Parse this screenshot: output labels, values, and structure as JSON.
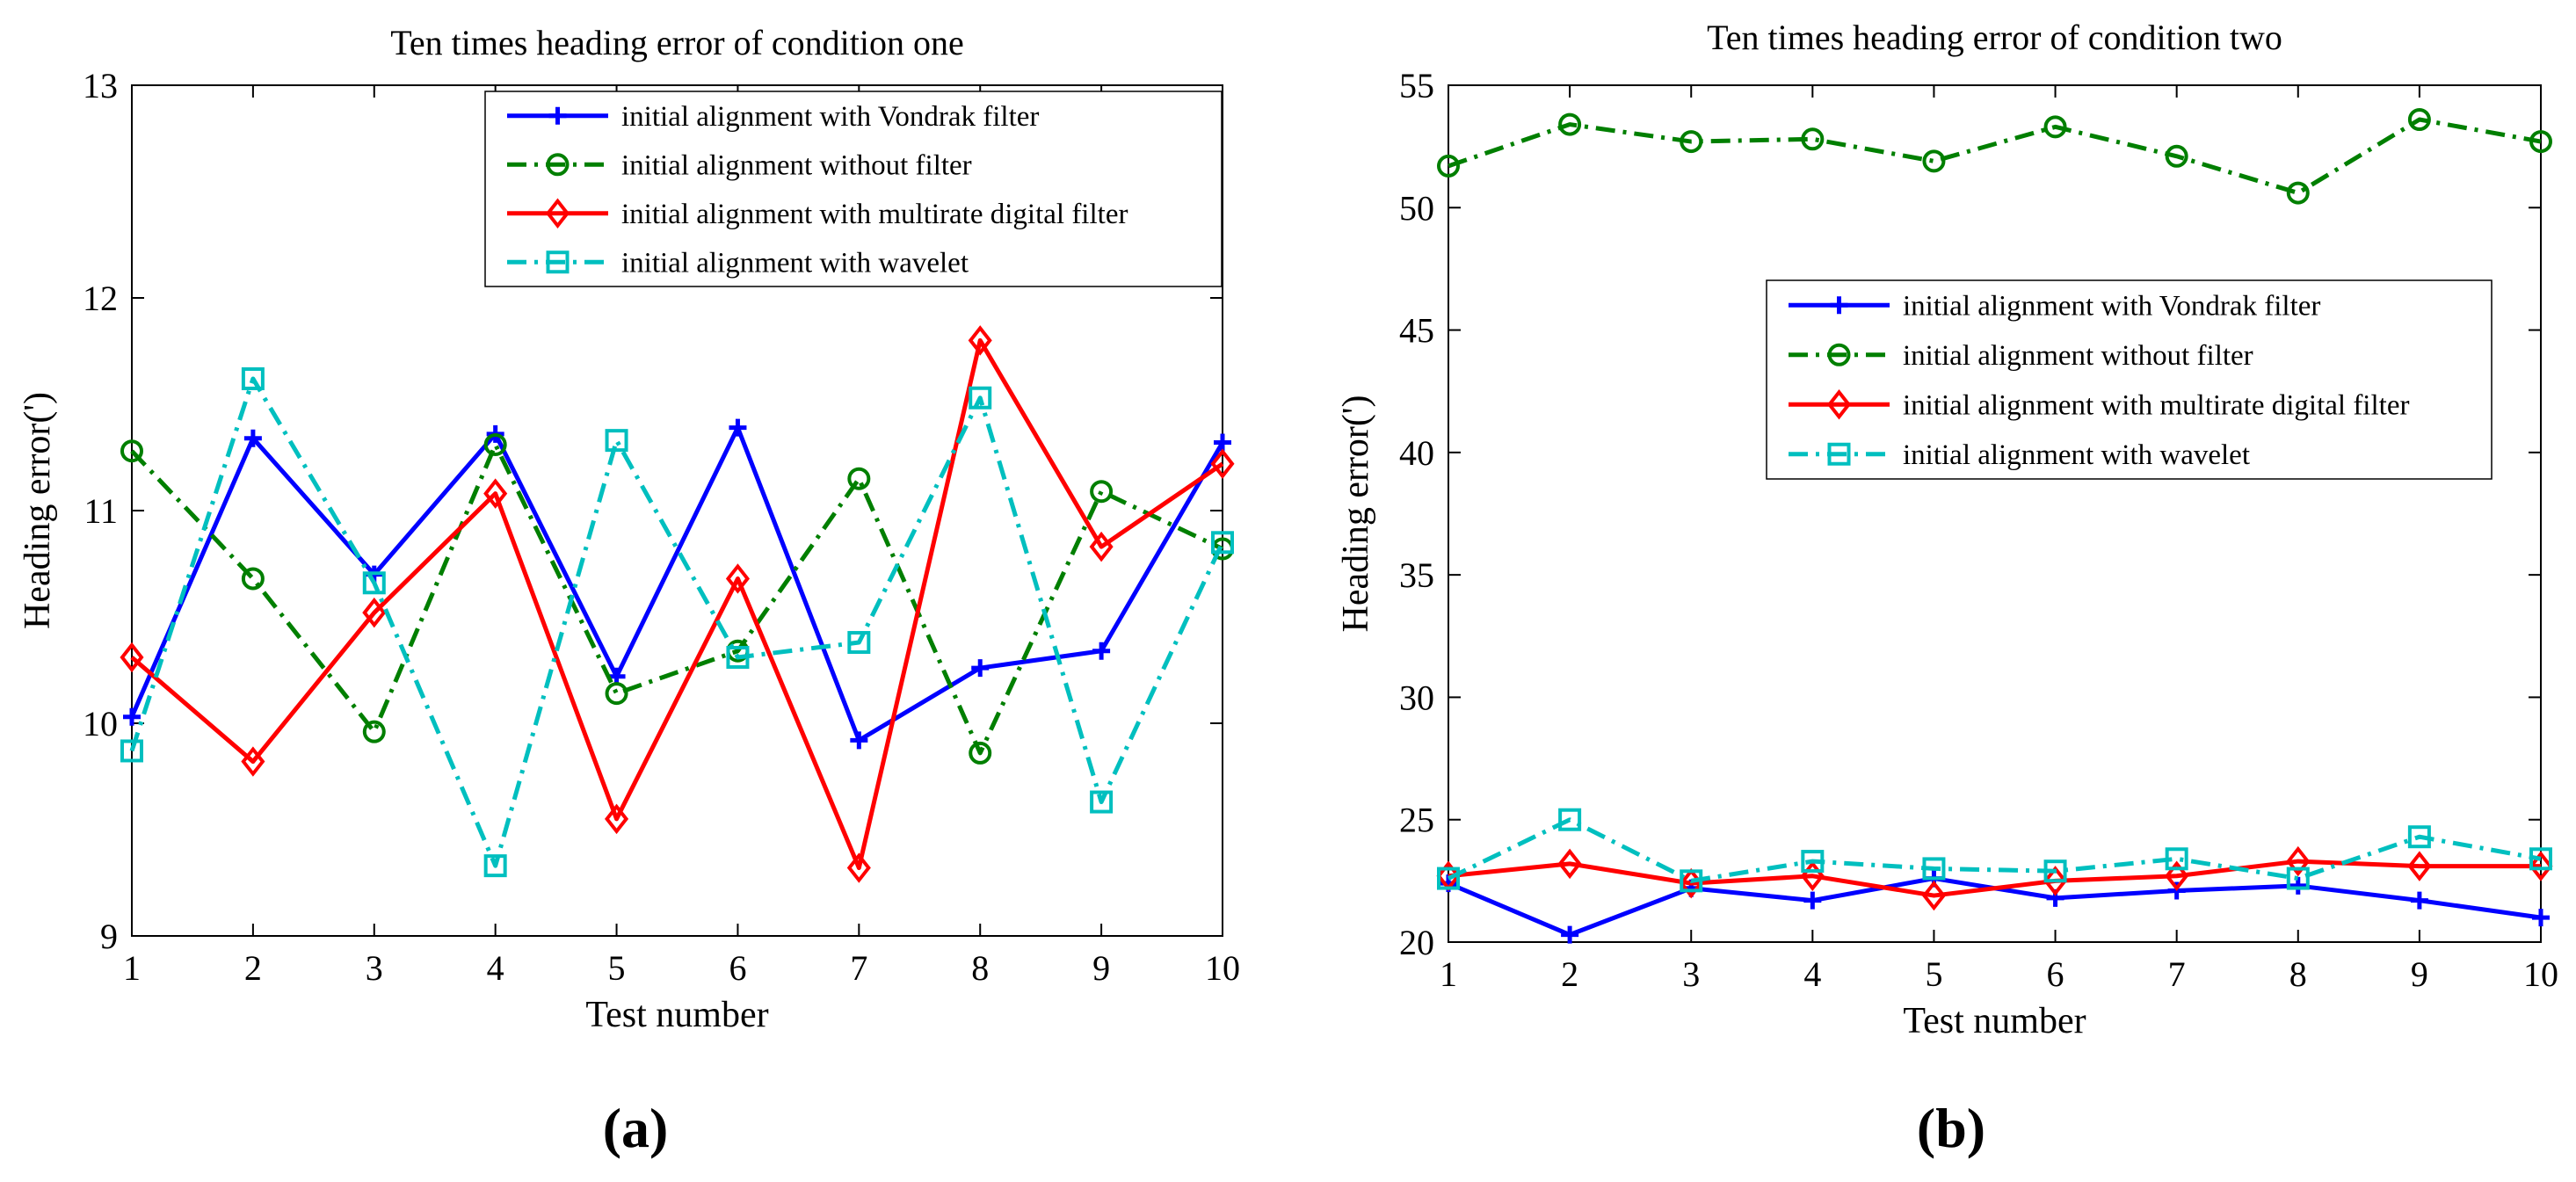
{
  "figure": {
    "panel_labels": [
      "(a)",
      "(b)"
    ]
  },
  "chart_data": [
    {
      "type": "line",
      "title": "Ten times heading error of condition one",
      "xlabel": "Test number",
      "ylabel": "Heading error(')",
      "xlim": [
        1,
        10
      ],
      "ylim": [
        9,
        13
      ],
      "xticks": [
        "1",
        "2",
        "3",
        "4",
        "5",
        "6",
        "7",
        "8",
        "9",
        "10"
      ],
      "yticks": [
        "9",
        "10",
        "11",
        "12",
        "13"
      ],
      "legend_position": "top-right",
      "x": [
        1,
        2,
        3,
        4,
        5,
        6,
        7,
        8,
        9,
        10
      ],
      "series": [
        {
          "name": "initial alignment with Vondrak filter",
          "color": "#0000ff",
          "dash": "solid",
          "marker": "plus",
          "values": [
            10.03,
            11.34,
            10.7,
            11.36,
            10.22,
            11.39,
            9.92,
            10.26,
            10.34,
            11.32
          ]
        },
        {
          "name": "initial alignment without filter",
          "color": "#007f00",
          "dash": "dashdot",
          "marker": "circle",
          "values": [
            11.28,
            10.68,
            9.96,
            11.31,
            10.14,
            10.34,
            11.15,
            9.86,
            11.09,
            10.82
          ]
        },
        {
          "name": "initial alignment with multirate digital filter",
          "color": "#ff0000",
          "dash": "solid",
          "marker": "diamond",
          "values": [
            10.31,
            9.82,
            10.52,
            11.08,
            9.55,
            10.68,
            9.32,
            11.8,
            10.83,
            11.22
          ]
        },
        {
          "name": "initial alignment with wavelet",
          "color": "#00bfbf",
          "dash": "dashdot",
          "marker": "square",
          "values": [
            9.87,
            11.62,
            10.66,
            9.33,
            11.33,
            10.31,
            10.38,
            11.53,
            9.63,
            10.85
          ]
        }
      ]
    },
    {
      "type": "line",
      "title": "Ten times heading error of condition two",
      "xlabel": "Test number",
      "ylabel": "Heading error(')",
      "xlim": [
        1,
        10
      ],
      "ylim": [
        20,
        55
      ],
      "xticks": [
        "1",
        "2",
        "3",
        "4",
        "5",
        "6",
        "7",
        "8",
        "9",
        "10"
      ],
      "yticks": [
        "20",
        "25",
        "30",
        "35",
        "40",
        "45",
        "50",
        "55"
      ],
      "legend_position": "center-right",
      "x": [
        1,
        2,
        3,
        4,
        5,
        6,
        7,
        8,
        9,
        10
      ],
      "series": [
        {
          "name": "initial alignment with Vondrak filter",
          "color": "#0000ff",
          "dash": "solid",
          "marker": "plus",
          "values": [
            22.4,
            20.3,
            22.2,
            21.7,
            22.6,
            21.8,
            22.1,
            22.3,
            21.7,
            21.0
          ]
        },
        {
          "name": "initial alignment without filter",
          "color": "#007f00",
          "dash": "dashdot",
          "marker": "circle",
          "values": [
            51.7,
            53.4,
            52.7,
            52.8,
            51.9,
            53.3,
            52.1,
            50.6,
            53.6,
            52.7
          ]
        },
        {
          "name": "initial alignment with multirate digital filter",
          "color": "#ff0000",
          "dash": "solid",
          "marker": "diamond",
          "values": [
            22.7,
            23.2,
            22.4,
            22.7,
            21.9,
            22.5,
            22.7,
            23.3,
            23.1,
            23.1
          ]
        },
        {
          "name": "initial alignment with wavelet",
          "color": "#00bfbf",
          "dash": "dashdot",
          "marker": "square",
          "values": [
            22.6,
            25.0,
            22.5,
            23.3,
            23.0,
            22.9,
            23.4,
            22.6,
            24.3,
            23.4
          ]
        }
      ]
    }
  ]
}
